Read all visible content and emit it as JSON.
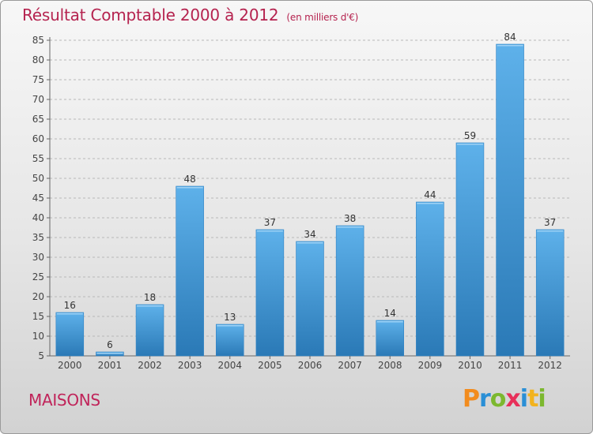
{
  "title": "Résultat Comptable 2000 à 2012",
  "subtitle": "(en milliers d'€)",
  "commune": "MAISONS",
  "logo_text": "Proxiti",
  "colors": {
    "title": "#b5234f",
    "bar_top": "#5eb1ea",
    "bar_bottom": "#2a79b6",
    "grid": "#b8b8b8"
  },
  "chart_data": {
    "type": "bar",
    "title": "Résultat Comptable 2000 à 2012",
    "subtitle": "(en milliers d'€)",
    "categories": [
      "2000",
      "2001",
      "2002",
      "2003",
      "2004",
      "2005",
      "2006",
      "2007",
      "2008",
      "2009",
      "2010",
      "2011",
      "2012"
    ],
    "values": [
      16,
      6,
      18,
      48,
      13,
      37,
      34,
      38,
      14,
      44,
      59,
      84,
      37
    ],
    "data_labels": [
      "16",
      "6",
      "18",
      "48",
      "13",
      "37",
      "34",
      "38",
      "14",
      "44",
      "59",
      "84",
      "37"
    ],
    "xlabel": "",
    "ylabel": "",
    "ylim": [
      5,
      85
    ],
    "yticks": [
      5,
      10,
      15,
      20,
      25,
      30,
      35,
      40,
      45,
      50,
      55,
      60,
      65,
      70,
      75,
      80,
      85
    ],
    "grid": true
  }
}
